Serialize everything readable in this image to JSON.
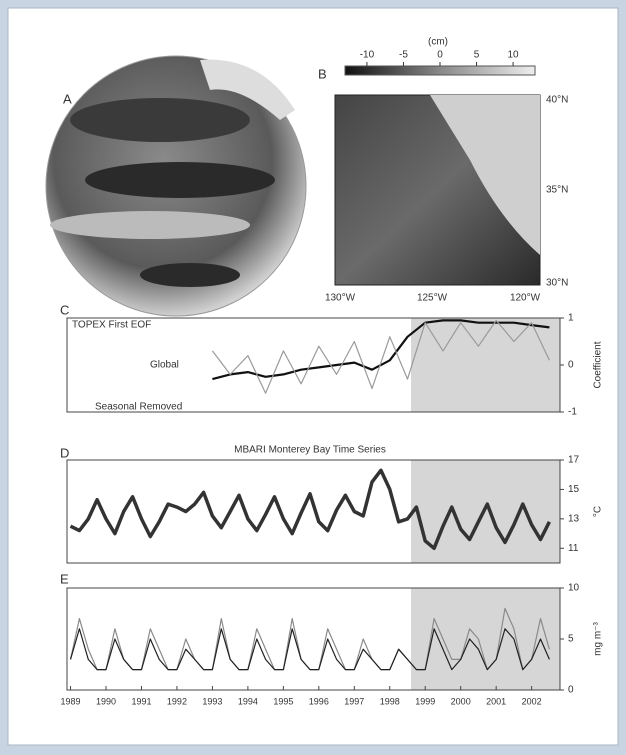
{
  "panels": {
    "a": {
      "label": "A"
    },
    "b": {
      "label": "B",
      "colorbar_label": "(cm)",
      "colorbar_ticks": [
        -10,
        -5,
        0,
        5,
        10
      ],
      "colorbar_lim": [
        -13,
        13
      ],
      "lat_labels": [
        "40°N",
        "35°N",
        "30°N"
      ],
      "lon_labels": [
        "130°W",
        "125°W",
        "120°W"
      ]
    }
  },
  "chart_data": [
    {
      "type": "line",
      "panel_label": "C",
      "title": "TOPEX First EOF",
      "y_axis_label": "Coefficient",
      "x": [
        1993.0,
        1993.5,
        1994.0,
        1994.5,
        1995.0,
        1995.5,
        1996.0,
        1996.5,
        1997.0,
        1997.5,
        1998.0,
        1998.5,
        1999.0,
        1999.5,
        2000.0,
        2000.5,
        2001.0,
        2001.5,
        2002.0,
        2002.5
      ],
      "series": [
        {
          "name": "Global",
          "color": "#111111",
          "values": [
            -0.3,
            -0.2,
            -0.15,
            -0.25,
            -0.2,
            -0.1,
            -0.05,
            0.0,
            0.05,
            -0.1,
            0.1,
            0.6,
            0.9,
            0.95,
            0.95,
            0.9,
            0.9,
            0.9,
            0.85,
            0.8
          ]
        },
        {
          "name": "Seasonal Removed",
          "color": "#9a9a9a",
          "values": [
            0.3,
            -0.2,
            0.2,
            -0.6,
            0.3,
            -0.4,
            0.4,
            -0.2,
            0.5,
            -0.5,
            0.6,
            -0.3,
            0.9,
            0.3,
            0.9,
            0.4,
            0.95,
            0.5,
            0.9,
            0.1
          ]
        }
      ],
      "xlim": [
        1988.9,
        2002.8
      ],
      "ylim": [
        -1,
        1
      ],
      "yticks": [
        -1,
        0,
        1
      ],
      "shaded_xrange": [
        1998.6,
        2002.8
      ]
    },
    {
      "type": "line",
      "panel_label": "D",
      "title": "MBARI Monterey Bay Time Series",
      "y_axis_label": "°C",
      "x": [
        1989.0,
        1989.25,
        1989.5,
        1989.75,
        1990.0,
        1990.25,
        1990.5,
        1990.75,
        1991.0,
        1991.25,
        1991.5,
        1991.75,
        1992.0,
        1992.25,
        1992.5,
        1992.75,
        1993.0,
        1993.25,
        1993.5,
        1993.75,
        1994.0,
        1994.25,
        1994.5,
        1994.75,
        1995.0,
        1995.25,
        1995.5,
        1995.75,
        1996.0,
        1996.25,
        1996.5,
        1996.75,
        1997.0,
        1997.25,
        1997.5,
        1997.75,
        1998.0,
        1998.25,
        1998.5,
        1998.75,
        1999.0,
        1999.25,
        1999.5,
        1999.75,
        2000.0,
        2000.25,
        2000.5,
        2000.75,
        2001.0,
        2001.25,
        2001.5,
        2001.75,
        2002.0,
        2002.25,
        2002.5
      ],
      "series": [
        {
          "color": "#333333",
          "values": [
            12.5,
            12.2,
            13.0,
            14.3,
            13.0,
            12.0,
            13.5,
            14.5,
            13.0,
            11.8,
            12.8,
            14.0,
            13.8,
            13.5,
            14.0,
            14.8,
            13.2,
            12.4,
            13.5,
            14.6,
            13.0,
            12.2,
            13.3,
            14.5,
            13.0,
            12.0,
            13.4,
            14.7,
            12.8,
            12.2,
            13.6,
            14.6,
            13.5,
            13.2,
            15.5,
            16.3,
            15.0,
            12.8,
            13.0,
            13.8,
            11.5,
            11.0,
            12.5,
            13.8,
            12.3,
            11.6,
            12.8,
            14.0,
            12.4,
            11.4,
            12.6,
            14.0,
            12.6,
            11.6,
            12.8
          ]
        }
      ],
      "xlim": [
        1988.9,
        2002.8
      ],
      "ylim": [
        10,
        17
      ],
      "yticks": [
        11,
        13,
        15,
        17
      ],
      "shaded_xrange": [
        1998.6,
        2002.8
      ]
    },
    {
      "type": "line",
      "panel_label": "E",
      "y_axis_label": "mg m⁻³",
      "x": [
        1989.0,
        1989.25,
        1989.5,
        1989.75,
        1990.0,
        1990.25,
        1990.5,
        1990.75,
        1991.0,
        1991.25,
        1991.5,
        1991.75,
        1992.0,
        1992.25,
        1992.5,
        1992.75,
        1993.0,
        1993.25,
        1993.5,
        1993.75,
        1994.0,
        1994.25,
        1994.5,
        1994.75,
        1995.0,
        1995.25,
        1995.5,
        1995.75,
        1996.0,
        1996.25,
        1996.5,
        1996.75,
        1997.0,
        1997.25,
        1997.5,
        1997.75,
        1998.0,
        1998.25,
        1998.5,
        1998.75,
        1999.0,
        1999.25,
        1999.5,
        1999.75,
        2000.0,
        2000.25,
        2000.5,
        2000.75,
        2001.0,
        2001.25,
        2001.5,
        2001.75,
        2002.0,
        2002.25,
        2002.5
      ],
      "series": [
        {
          "color": "#8a8a8a",
          "values": [
            3,
            7,
            4,
            2,
            2,
            6,
            3,
            2,
            2,
            6,
            4,
            2,
            2,
            5,
            3,
            2,
            2,
            7,
            3,
            2,
            2,
            6,
            4,
            2,
            2,
            7,
            3,
            2,
            2,
            6,
            4,
            2,
            2,
            5,
            3,
            2,
            2,
            4,
            3,
            2,
            2,
            7,
            5,
            3,
            3,
            6,
            5,
            2,
            3,
            8,
            6,
            2,
            3,
            7,
            4
          ]
        },
        {
          "color": "#222222",
          "values": [
            3,
            6,
            3,
            2,
            2,
            5,
            3,
            2,
            2,
            5,
            3,
            2,
            2,
            4,
            3,
            2,
            2,
            6,
            3,
            2,
            2,
            5,
            3,
            2,
            2,
            6,
            3,
            2,
            2,
            5,
            3,
            2,
            2,
            4,
            3,
            2,
            2,
            4,
            3,
            2,
            2,
            6,
            4,
            2,
            3,
            5,
            4,
            2,
            3,
            6,
            5,
            2,
            3,
            5,
            3
          ]
        }
      ],
      "xlim": [
        1988.9,
        2002.8
      ],
      "ylim": [
        0,
        10
      ],
      "yticks": [
        0,
        5,
        10
      ],
      "xticks": [
        1989,
        1990,
        1991,
        1992,
        1993,
        1994,
        1995,
        1996,
        1997,
        1998,
        1999,
        2000,
        2001,
        2002
      ],
      "shaded_xrange": [
        1998.6,
        2002.8
      ]
    }
  ]
}
